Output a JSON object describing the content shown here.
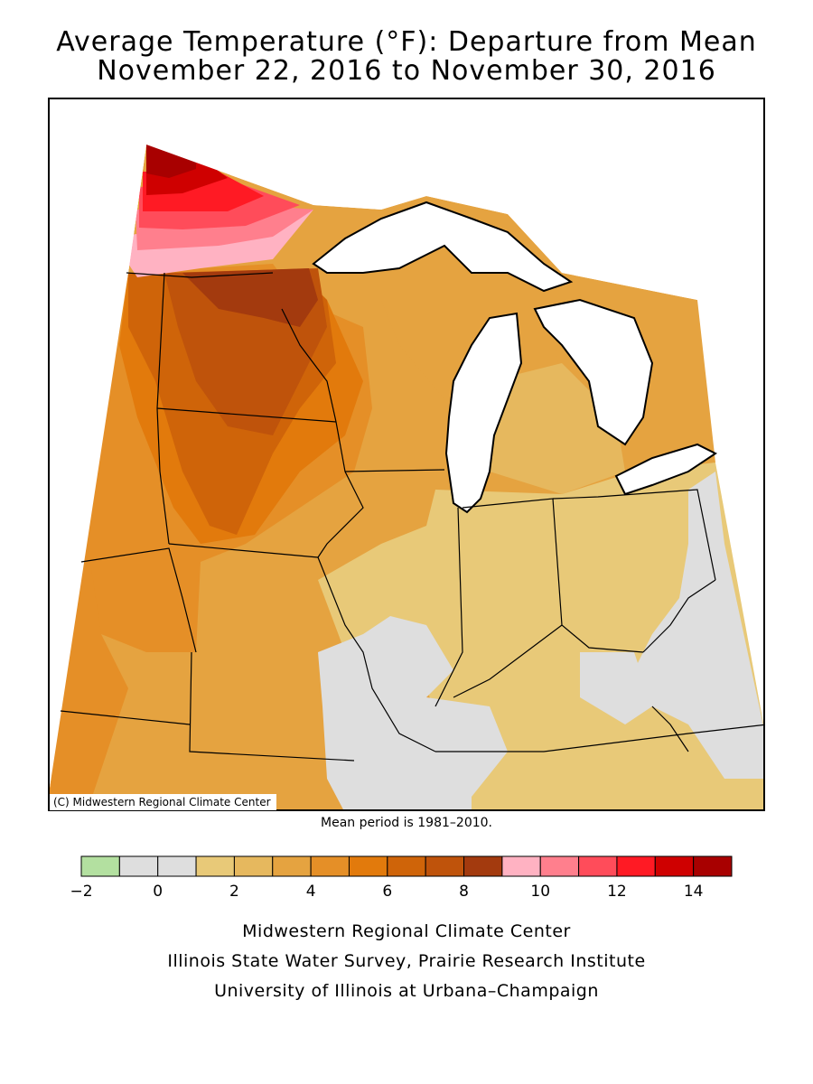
{
  "title": {
    "line1": "Average Temperature (°F): Departure from Mean",
    "line2": "November 22, 2016 to November 30, 2016"
  },
  "map": {
    "copyright": "(C) Midwestern Regional Climate Center",
    "mean_period": "Mean period is 1981–2010."
  },
  "legend": {
    "colors": [
      "#b3e0a0",
      "#dedede",
      "#dedede",
      "#e8c978",
      "#e6b85e",
      "#e5a340",
      "#e58f27",
      "#e27a0c",
      "#cf6409",
      "#bf530b",
      "#a33a0e",
      "#ffb2c2",
      "#ff7f8d",
      "#ff4c5a",
      "#ff1a24",
      "#cf0000",
      "#a80000"
    ],
    "tick_labels": [
      "−2",
      "0",
      "2",
      "4",
      "6",
      "8",
      "10",
      "12",
      "14"
    ],
    "tick_values": [
      -2,
      0,
      2,
      4,
      6,
      8,
      10,
      12,
      14
    ],
    "min": -2,
    "max": 15
  },
  "credits": {
    "line1": "Midwestern Regional Climate Center",
    "line2": "Illinois State Water Survey, Prairie Research Institute",
    "line3": "University of Illinois at Urbana–Champaign"
  }
}
